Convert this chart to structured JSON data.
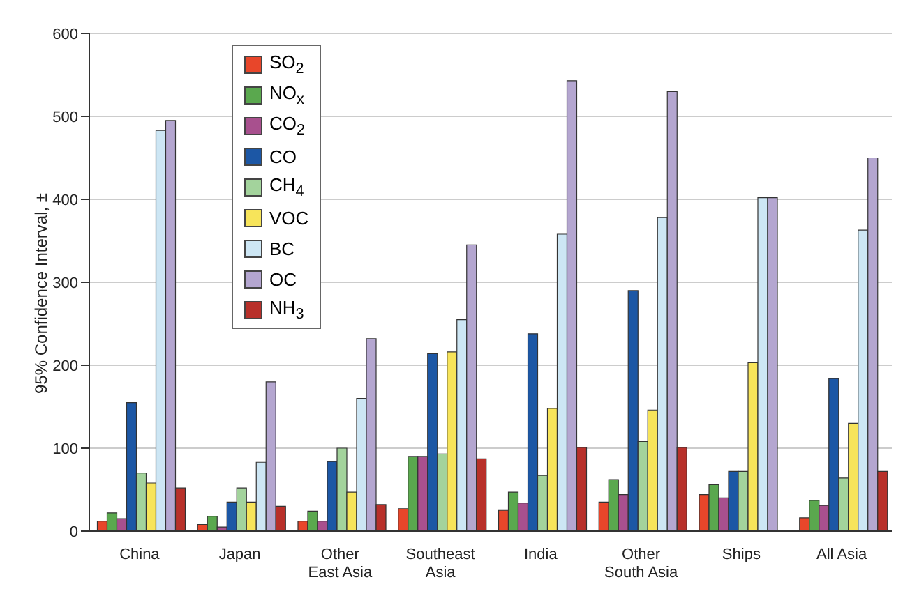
{
  "chart_data": {
    "type": "bar",
    "categories": [
      "China",
      "Japan",
      "Other\nEast Asia",
      "Southeast\nAsia",
      "India",
      "Other\nSouth Asia",
      "Ships",
      "All Asia"
    ],
    "ylabel": "95% Confidence Interval, ±",
    "ylim": [
      0,
      600
    ],
    "yticks": [
      0,
      100,
      200,
      300,
      400,
      500,
      600
    ],
    "grid": "y",
    "legend": "top left",
    "series": [
      {
        "name": "SO$_{2}$",
        "color": "#e8462a",
        "values": [
          12,
          8,
          12,
          27,
          25,
          35,
          44,
          16
        ]
      },
      {
        "name": "NO$_{x}$",
        "color": "#5aa84e",
        "values": [
          22,
          18,
          24,
          90,
          47,
          62,
          56,
          37
        ]
      },
      {
        "name": "CO$_{2}$",
        "color": "#a8508e",
        "values": [
          15,
          5,
          12,
          90,
          34,
          44,
          40,
          31
        ]
      },
      {
        "name": "CO",
        "color": "#1c57a5",
        "values": [
          155,
          35,
          84,
          214,
          238,
          290,
          72,
          184
        ]
      },
      {
        "name": "CH$_{4}$",
        "color": "#a3d39c",
        "values": [
          70,
          52,
          100,
          93,
          67,
          108,
          72,
          64
        ]
      },
      {
        "name": "VOC",
        "color": "#f7e45a",
        "values": [
          58,
          35,
          47,
          216,
          148,
          146,
          203,
          130
        ]
      },
      {
        "name": "BC",
        "color": "#cde6f4",
        "values": [
          483,
          83,
          160,
          255,
          358,
          378,
          402,
          363
        ]
      },
      {
        "name": "OC",
        "color": "#b4a6d0",
        "values": [
          495,
          180,
          232,
          345,
          543,
          530,
          402,
          450
        ]
      },
      {
        "name": "NH$_{3}$",
        "color": "#b8302a",
        "values": [
          52,
          30,
          32,
          87,
          101,
          101,
          null,
          72
        ]
      }
    ]
  }
}
